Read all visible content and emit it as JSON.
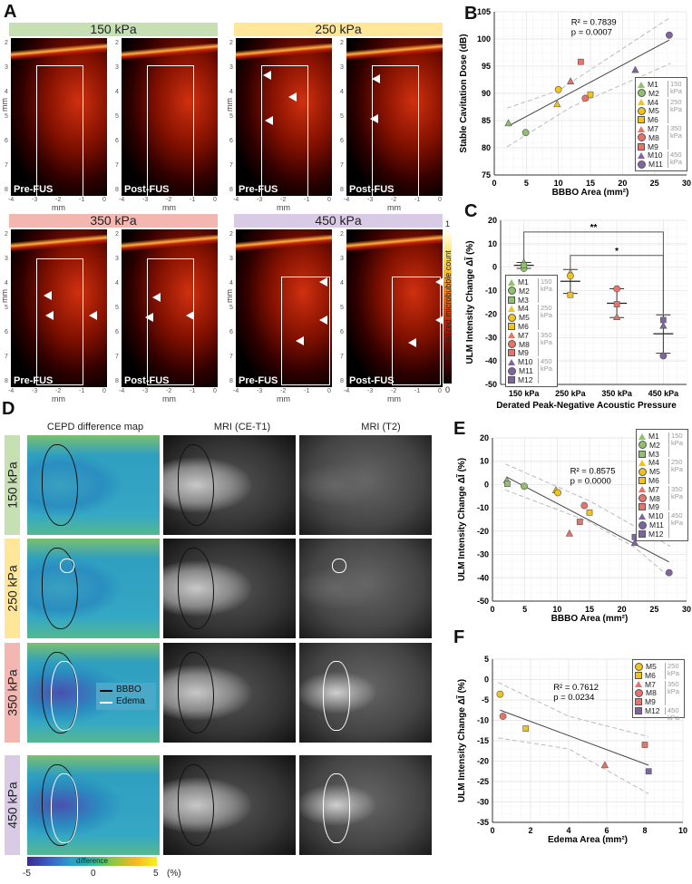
{
  "panel_labels": {
    "a": "A",
    "b": "B",
    "c": "C",
    "d": "D",
    "e": "E",
    "f": "F"
  },
  "colors": {
    "p150": "#8fc06a",
    "p250": "#f2c318",
    "p350": "#e8736a",
    "p450": "#8064a2",
    "h150": "#c6e0b4",
    "h250": "#ffe699",
    "h350": "#f4b6b0",
    "h450": "#d9cbe6"
  },
  "panel_a": {
    "groups": [
      {
        "pressure": "150 kPa",
        "images": [
          "Pre-FUS",
          "Post-FUS"
        ]
      },
      {
        "pressure": "250 kPa",
        "images": [
          "Pre-FUS",
          "Post-FUS"
        ]
      },
      {
        "pressure": "350 kPa",
        "images": [
          "Pre-FUS",
          "Post-FUS"
        ]
      },
      {
        "pressure": "450 kPa",
        "images": [
          "Pre-FUS",
          "Post-FUS"
        ]
      }
    ],
    "y_ticks": [
      "2",
      "3",
      "4",
      "5",
      "6",
      "7",
      "8"
    ],
    "x_ticks": [
      "-4",
      "-3",
      "-2",
      "-1",
      "0"
    ],
    "axis_unit": "mm",
    "colorbar": {
      "label": "Normalized microbubble count",
      "max": "1",
      "min": "0"
    }
  },
  "panel_d": {
    "columns": [
      "CEPD difference map",
      "MRI (CE-T1)",
      "MRI (T2)"
    ],
    "rows": [
      "150 kPa",
      "250 kPa",
      "350 kPa",
      "450 kPa"
    ],
    "legend": [
      {
        "label": "BBBO",
        "color": "#000000"
      },
      {
        "label": "Edema",
        "color": "#ffffff"
      }
    ],
    "colorbar": {
      "label": "difference",
      "min": "-5",
      "mid": "0",
      "max": "5",
      "unit": "(%)"
    }
  },
  "legend_groups": {
    "g150": "150 kPa",
    "g250": "250 kPa",
    "g350": "350 kPa",
    "g450": "450 kPa"
  },
  "chart_data": [
    {
      "id": "B",
      "type": "scatter",
      "xlabel": "BBBO Area (mm²)",
      "ylabel": "Stable Cavitation Dose (dB)",
      "xlim": [
        0,
        30
      ],
      "ylim": [
        75,
        105
      ],
      "xticks": [
        0,
        5,
        10,
        15,
        20,
        25,
        30
      ],
      "yticks": [
        75,
        80,
        85,
        90,
        95,
        100,
        105
      ],
      "grid": true,
      "annotation": [
        "R² = 0.7839",
        "p = 0.0007"
      ],
      "legend": "right",
      "points": [
        {
          "label": "M1",
          "x": 2.2,
          "y": 84.5,
          "shape": "triangle",
          "group": "150"
        },
        {
          "label": "M2",
          "x": 4.9,
          "y": 82.8,
          "shape": "circle",
          "group": "150"
        },
        {
          "label": "M4",
          "x": 9.8,
          "y": 88.0,
          "shape": "triangle",
          "group": "250"
        },
        {
          "label": "M5",
          "x": 10.0,
          "y": 90.7,
          "shape": "circle",
          "group": "250"
        },
        {
          "label": "M6",
          "x": 15.0,
          "y": 89.8,
          "shape": "square",
          "group": "250"
        },
        {
          "label": "M7",
          "x": 11.9,
          "y": 92.2,
          "shape": "triangle",
          "group": "350"
        },
        {
          "label": "M8",
          "x": 14.2,
          "y": 89.1,
          "shape": "circle",
          "group": "350"
        },
        {
          "label": "M9",
          "x": 13.5,
          "y": 95.8,
          "shape": "square",
          "group": "350"
        },
        {
          "label": "M10",
          "x": 22.0,
          "y": 94.3,
          "shape": "triangle",
          "group": "450"
        },
        {
          "label": "M11",
          "x": 27.3,
          "y": 100.7,
          "shape": "circle",
          "group": "450"
        }
      ],
      "fit": [
        [
          2.2,
          84.0
        ],
        [
          27.3,
          99.8
        ]
      ],
      "ci_upper": [
        [
          2,
          87.3
        ],
        [
          10,
          90.5
        ],
        [
          27.5,
          104
        ]
      ],
      "ci_lower": [
        [
          2,
          80.2
        ],
        [
          12,
          87.5
        ],
        [
          27.5,
          95.5
        ]
      ]
    },
    {
      "id": "C",
      "type": "scatter",
      "xlabel": "Derated Peak-Negative Acoustic Pressure",
      "ylabel": "ULM Intensity Change ΔĨ (%)",
      "categories": [
        "150 kPa",
        "250 kPa",
        "350 kPa",
        "450 kPa"
      ],
      "ylim": [
        -50,
        20
      ],
      "yticks": [
        -50,
        -40,
        -30,
        -20,
        -10,
        0,
        10,
        20
      ],
      "grid": true,
      "legend": "inside-left",
      "points": [
        {
          "label": "M1",
          "cat": 0,
          "y": 2.0,
          "shape": "triangle",
          "group": "150"
        },
        {
          "label": "M2",
          "cat": 0,
          "y": -0.5,
          "shape": "circle",
          "group": "150"
        },
        {
          "label": "M3",
          "cat": 0,
          "y": 0.8,
          "shape": "square",
          "group": "150"
        },
        {
          "label": "M4",
          "cat": 1,
          "y": -2.5,
          "shape": "triangle",
          "group": "250"
        },
        {
          "label": "M5",
          "cat": 1,
          "y": -3.7,
          "shape": "circle",
          "group": "250"
        },
        {
          "label": "M6",
          "cat": 1,
          "y": -11.8,
          "shape": "square",
          "group": "250"
        },
        {
          "label": "M7",
          "cat": 2,
          "y": -21.3,
          "shape": "triangle",
          "group": "350"
        },
        {
          "label": "M8",
          "cat": 2,
          "y": -9.2,
          "shape": "circle",
          "group": "350"
        },
        {
          "label": "M9",
          "cat": 2,
          "y": -15.8,
          "shape": "square",
          "group": "350"
        },
        {
          "label": "M10",
          "cat": 3,
          "y": -25.0,
          "shape": "triangle",
          "group": "450"
        },
        {
          "label": "M11",
          "cat": 3,
          "y": -37.8,
          "shape": "circle",
          "group": "450"
        },
        {
          "label": "M12",
          "cat": 3,
          "y": -22.5,
          "shape": "square",
          "group": "450"
        }
      ],
      "means": [
        0.8,
        -6.0,
        -15.4,
        -28.4
      ],
      "errors": [
        [
          2.0,
          -0.5
        ],
        [
          -1.0,
          -11.2
        ],
        [
          -9.2,
          -21.5
        ],
        [
          -20.3,
          -36.7
        ]
      ],
      "significance": [
        {
          "from": 0,
          "to": 3,
          "y": 15,
          "label": "**"
        },
        {
          "from": 1,
          "to": 3,
          "y": 5,
          "label": "*"
        }
      ]
    },
    {
      "id": "E",
      "type": "scatter",
      "xlabel": "BBBO Area (mm²)",
      "ylabel": "ULM Intensity Change ΔĨ (%)",
      "xlim": [
        0,
        30
      ],
      "ylim": [
        -50,
        20
      ],
      "xticks": [
        0,
        5,
        10,
        15,
        20,
        25,
        30
      ],
      "yticks": [
        -50,
        -40,
        -30,
        -20,
        -10,
        0,
        10,
        20
      ],
      "grid": true,
      "annotation": [
        "R² = 0.8575",
        "p = 0.0000"
      ],
      "legend": "top-right",
      "points": [
        {
          "label": "M1",
          "x": 2.2,
          "y": 1.8,
          "shape": "triangle",
          "group": "150"
        },
        {
          "label": "M2",
          "x": 4.9,
          "y": -0.7,
          "shape": "circle",
          "group": "150"
        },
        {
          "label": "M3",
          "x": 2.3,
          "y": 0.3,
          "shape": "square",
          "group": "150"
        },
        {
          "label": "M4",
          "x": 9.8,
          "y": -2.5,
          "shape": "triangle",
          "group": "250"
        },
        {
          "label": "M5",
          "x": 10.1,
          "y": -3.5,
          "shape": "circle",
          "group": "250"
        },
        {
          "label": "M6",
          "x": 15.0,
          "y": -12.0,
          "shape": "square",
          "group": "250"
        },
        {
          "label": "M7",
          "x": 11.9,
          "y": -21.0,
          "shape": "triangle",
          "group": "350"
        },
        {
          "label": "M8",
          "x": 14.2,
          "y": -9.0,
          "shape": "circle",
          "group": "350"
        },
        {
          "label": "M9",
          "x": 13.5,
          "y": -16.0,
          "shape": "square",
          "group": "350"
        },
        {
          "label": "M10",
          "x": 22.0,
          "y": -25.0,
          "shape": "triangle",
          "group": "450"
        },
        {
          "label": "M11",
          "x": 27.3,
          "y": -37.8,
          "shape": "circle",
          "group": "450"
        },
        {
          "label": "M12",
          "x": 22.0,
          "y": -22.5,
          "shape": "square",
          "group": "450"
        }
      ],
      "fit": [
        [
          2.2,
          3.2
        ],
        [
          27.3,
          -33.2
        ]
      ],
      "ci_upper": [
        [
          2,
          8.8
        ],
        [
          15,
          -7
        ],
        [
          27.5,
          -26.5
        ]
      ],
      "ci_lower": [
        [
          2,
          -2.3
        ],
        [
          15,
          -16
        ],
        [
          22,
          -27
        ],
        [
          27.5,
          -40
        ]
      ]
    },
    {
      "id": "F",
      "type": "scatter",
      "xlabel": "Edema Area (mm²)",
      "ylabel": "ULM Intensity Change ΔĨ (%)",
      "xlim": [
        0,
        10
      ],
      "ylim": [
        -35,
        5
      ],
      "xticks": [
        0,
        2,
        4,
        6,
        8,
        10
      ],
      "yticks": [
        -35,
        -30,
        -25,
        -20,
        -15,
        -10,
        -5,
        0,
        5
      ],
      "grid": true,
      "annotation": [
        "R² = 0.7612",
        "p = 0.0234"
      ],
      "legend": "top-right",
      "points": [
        {
          "label": "M5",
          "x": 0.4,
          "y": -3.6,
          "shape": "circle",
          "group": "250"
        },
        {
          "label": "M6",
          "x": 1.75,
          "y": -12.0,
          "shape": "square",
          "group": "250"
        },
        {
          "label": "M7",
          "x": 5.9,
          "y": -21.0,
          "shape": "triangle",
          "group": "350"
        },
        {
          "label": "M8",
          "x": 0.55,
          "y": -9.0,
          "shape": "circle",
          "group": "350"
        },
        {
          "label": "M9",
          "x": 8.0,
          "y": -16.0,
          "shape": "square",
          "group": "350"
        },
        {
          "label": "M12",
          "x": 8.2,
          "y": -22.5,
          "shape": "square",
          "group": "450"
        }
      ],
      "fit": [
        [
          0.4,
          -7.5
        ],
        [
          8.2,
          -21.0
        ]
      ],
      "ci_upper": [
        [
          0.3,
          -0.7
        ],
        [
          4,
          -9
        ],
        [
          8.2,
          -14
        ]
      ],
      "ci_lower": [
        [
          0.3,
          -14.3
        ],
        [
          4,
          -17
        ],
        [
          8.2,
          -28
        ]
      ]
    }
  ]
}
